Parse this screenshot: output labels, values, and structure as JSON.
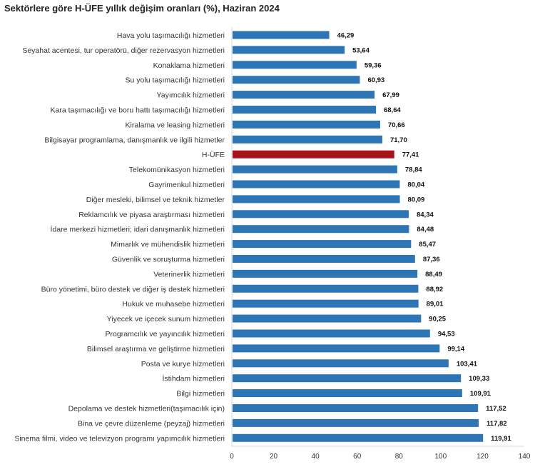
{
  "chart_data": {
    "type": "bar",
    "orientation": "horizontal",
    "title": "Sektörlere göre H-ÜFE yıllık değişim oranları (%), Haziran 2024",
    "xlabel": "",
    "ylabel": "",
    "xlim": [
      0,
      140
    ],
    "xticks": [
      "0",
      "20",
      "40",
      "60",
      "80",
      "100",
      "120",
      "140"
    ],
    "grid": false,
    "colors": {
      "default": "#2e75b6",
      "highlight": "#a6131b"
    },
    "highlight_category": "H-ÜFE",
    "categories": [
      "Hava yolu taşımacılığı hizmetleri",
      "Seyahat acentesi, tur operatörü, diğer rezervasyon hizmetleri",
      "Konaklama hizmetleri",
      "Su yolu taşımacılığı hizmetleri",
      "Yayımcılık hizmetleri",
      "Kara taşımacılığı ve boru hattı taşımacılığı hizmetleri",
      "Kiralama ve leasing hizmetleri",
      "Bilgisayar programlama, danışmanlık ve ilgili hizmetler",
      "H-ÜFE",
      "Telekomünikasyon hizmetleri",
      "Gayrimenkul hizmetleri",
      "Diğer mesleki, bilimsel ve teknik hizmetler",
      "Reklamcılık ve piyasa araştırması hizmetleri",
      "İdare merkezi hizmetleri; idari danışmanlık hizmetleri",
      "Mimarlık ve mühendislik hizmetleri",
      "Güvenlik ve soruşturma hizmetleri",
      "Veterinerlik hizmetleri",
      "Büro yönetimi, büro destek ve diğer iş destek hizmetleri",
      "Hukuk ve muhasebe hizmetleri",
      "Yiyecek ve içecek sunum hizmetleri",
      "Programcılık ve yayıncılık hizmetleri",
      "Bilimsel araştırma ve geliştirme hizmetleri",
      "Posta ve kurye hizmetleri",
      "İstihdam hizmetleri",
      "Bilgi hizmetleri",
      "Depolama ve destek hizmetleri(taşımacılık için)",
      "Bina ve çevre düzenleme (peyzaj) hizmetleri",
      "Sinema filmi, video ve televizyon programı yapımcılık hizmetleri"
    ],
    "values": [
      46.29,
      53.64,
      59.36,
      60.93,
      67.99,
      68.64,
      70.66,
      71.7,
      77.41,
      78.84,
      80.04,
      80.09,
      84.34,
      84.48,
      85.47,
      87.36,
      88.49,
      88.92,
      89.01,
      90.25,
      94.53,
      99.14,
      103.41,
      109.33,
      109.91,
      117.52,
      117.82,
      119.91
    ],
    "value_labels": [
      "46,29",
      "53,64",
      "59,36",
      "60,93",
      "67,99",
      "68,64",
      "70,66",
      "71,70",
      "77,41",
      "78,84",
      "80,04",
      "80,09",
      "84,34",
      "84,48",
      "85,47",
      "87,36",
      "88,49",
      "88,92",
      "89,01",
      "90,25",
      "94,53",
      "99,14",
      "103,41",
      "109,33",
      "109,91",
      "117,52",
      "117,82",
      "119,91"
    ]
  }
}
